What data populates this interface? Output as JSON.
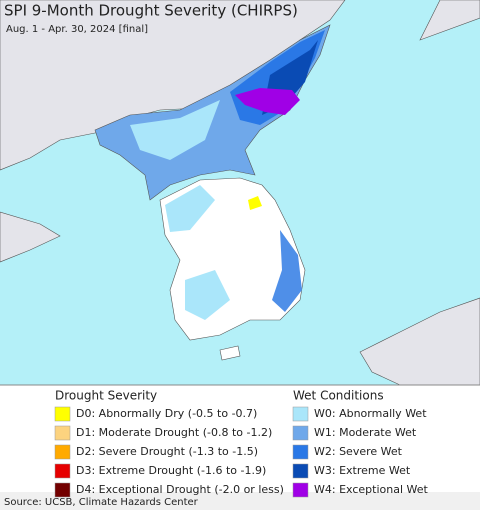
{
  "header": {
    "title": "SPI 9-Month Drought Severity (CHIRPS)",
    "subtitle": "Aug. 1 - Apr. 30, 2024 [final]"
  },
  "legend": {
    "drought": {
      "title": "Drought Severity",
      "items": [
        {
          "label": "D0: Abnormally Dry (-0.5 to -0.7)",
          "color": "#ffff00"
        },
        {
          "label": "D1: Moderate Drought (-0.8 to -1.2)",
          "color": "#fcd37f"
        },
        {
          "label": "D2: Severe Drought (-1.3 to -1.5)",
          "color": "#ffaa00"
        },
        {
          "label": "D3: Extreme Drought (-1.6 to -1.9)",
          "color": "#e60000"
        },
        {
          "label": "D4: Exceptional Drought (-2.0 or less)",
          "color": "#730000"
        }
      ]
    },
    "wet": {
      "title": "Wet Conditions",
      "items": [
        {
          "label": "W0: Abnormally Wet",
          "color": "#aae6fa"
        },
        {
          "label": "W1: Moderate Wet",
          "color": "#6fa8ea"
        },
        {
          "label": "W2: Severe Wet",
          "color": "#2a78e6"
        },
        {
          "label": "W3: Extreme Wet",
          "color": "#0a4bb4"
        },
        {
          "label": "W4: Exceptional Wet",
          "color": "#a000e6"
        }
      ]
    }
  },
  "source": "Source: UCSB, Climate Hazards Center"
}
